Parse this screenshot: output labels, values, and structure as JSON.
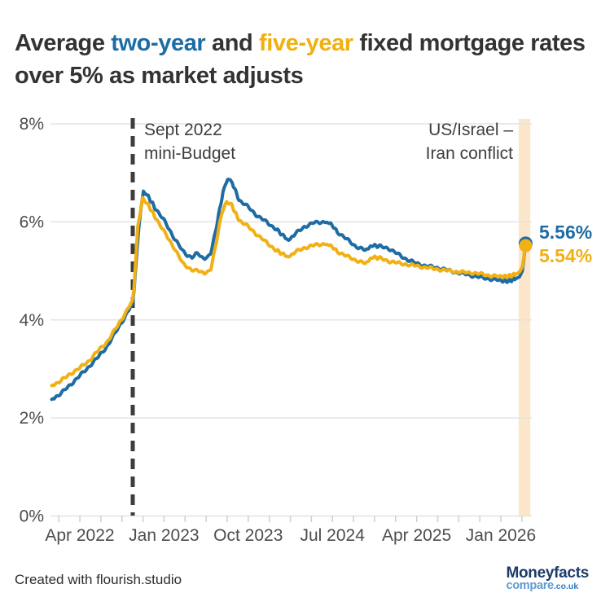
{
  "theme": {
    "ink": "#333333",
    "blue": "#1E6CA4",
    "yellow": "#F1AF10",
    "band": "#FCE6C9",
    "grid": "#E3E3E3",
    "tick": "#CFCFCF",
    "dash": "#3D3D3D",
    "axis_text": "#4D4D4D"
  },
  "title": {
    "segments": [
      {
        "text": "Average ",
        "color": "ink"
      },
      {
        "text": "two-year",
        "color": "blue"
      },
      {
        "text": " and ",
        "color": "ink"
      },
      {
        "text": "five-year",
        "color": "yellow"
      },
      {
        "text": " fixed mortgage rates over 5% as market adjusts",
        "color": "ink"
      }
    ]
  },
  "chart_data": {
    "type": "line",
    "title": "Average two-year and five-year fixed mortgage rates over 5% as market adjusts",
    "y_axis": {
      "unit": "%",
      "range": [
        0,
        8
      ],
      "tick_values": [
        0,
        2,
        4,
        6,
        8
      ],
      "tick_labels": [
        "0%",
        "2%",
        "4%",
        "6%",
        "8%"
      ],
      "grid": "horizontal"
    },
    "x_axis": {
      "note": "month index 0 = Jan 2022",
      "tick_labels": [
        {
          "label": "Apr 2022",
          "month": 3
        },
        {
          "label": "Jan 2023",
          "month": 12
        },
        {
          "label": "Oct 2023",
          "month": 21
        },
        {
          "label": "Jul 2024",
          "month": 30
        },
        {
          "label": "Apr 2025",
          "month": 39
        },
        {
          "label": "Jan 2026",
          "month": 48
        }
      ]
    },
    "series": [
      {
        "name": "two-year",
        "color": "#1E6CA4",
        "end_label": "5.56%",
        "end_value": 5.56,
        "points": [
          [
            0,
            2.38
          ],
          [
            1,
            2.5
          ],
          [
            2,
            2.68
          ],
          [
            3,
            2.86
          ],
          [
            4,
            3.05
          ],
          [
            5,
            3.25
          ],
          [
            6,
            3.48
          ],
          [
            7,
            3.8
          ],
          [
            8,
            4.12
          ],
          [
            8.6,
            4.32
          ],
          [
            8.8,
            4.6
          ],
          [
            9.3,
            5.9
          ],
          [
            9.8,
            6.62
          ],
          [
            10.2,
            6.55
          ],
          [
            11,
            6.3
          ],
          [
            12,
            6.03
          ],
          [
            13,
            5.7
          ],
          [
            14,
            5.4
          ],
          [
            14.5,
            5.32
          ],
          [
            15,
            5.28
          ],
          [
            15.4,
            5.38
          ],
          [
            16,
            5.28
          ],
          [
            16.6,
            5.25
          ],
          [
            17,
            5.35
          ],
          [
            17.6,
            5.9
          ],
          [
            18.3,
            6.6
          ],
          [
            18.8,
            6.87
          ],
          [
            19.3,
            6.8
          ],
          [
            20,
            6.45
          ],
          [
            21,
            6.3
          ],
          [
            22,
            6.12
          ],
          [
            23,
            5.99
          ],
          [
            24,
            5.85
          ],
          [
            25.3,
            5.62
          ],
          [
            26,
            5.75
          ],
          [
            27,
            5.9
          ],
          [
            28,
            5.98
          ],
          [
            29,
            6.0
          ],
          [
            29.8,
            5.97
          ],
          [
            30.5,
            5.8
          ],
          [
            31.5,
            5.65
          ],
          [
            32.5,
            5.5
          ],
          [
            33.5,
            5.42
          ],
          [
            34.3,
            5.52
          ],
          [
            35,
            5.5
          ],
          [
            36,
            5.46
          ],
          [
            37,
            5.34
          ],
          [
            38,
            5.23
          ],
          [
            39,
            5.15
          ],
          [
            40,
            5.1
          ],
          [
            41,
            5.07
          ],
          [
            42,
            5.03
          ],
          [
            43,
            4.98
          ],
          [
            44,
            4.94
          ],
          [
            45,
            4.9
          ],
          [
            46,
            4.86
          ],
          [
            47,
            4.83
          ],
          [
            48,
            4.8
          ],
          [
            48.8,
            4.79
          ],
          [
            49.6,
            4.84
          ],
          [
            50.0,
            4.88
          ],
          [
            50.3,
            5.0
          ],
          [
            50.65,
            5.56
          ]
        ]
      },
      {
        "name": "five-year",
        "color": "#F1B014",
        "end_label": "5.54%",
        "end_value": 5.54,
        "points": [
          [
            0,
            2.66
          ],
          [
            1,
            2.76
          ],
          [
            2,
            2.9
          ],
          [
            3,
            3.02
          ],
          [
            4,
            3.17
          ],
          [
            5,
            3.38
          ],
          [
            6,
            3.57
          ],
          [
            7,
            3.87
          ],
          [
            8,
            4.18
          ],
          [
            8.6,
            4.38
          ],
          [
            8.8,
            4.65
          ],
          [
            9.2,
            5.9
          ],
          [
            9.7,
            6.49
          ],
          [
            10.2,
            6.38
          ],
          [
            11,
            6.12
          ],
          [
            12,
            5.8
          ],
          [
            13,
            5.5
          ],
          [
            14,
            5.15
          ],
          [
            15,
            5.02
          ],
          [
            16,
            4.98
          ],
          [
            16.6,
            4.95
          ],
          [
            17,
            5.02
          ],
          [
            17.6,
            5.6
          ],
          [
            18.2,
            6.2
          ],
          [
            18.7,
            6.42
          ],
          [
            19.2,
            6.35
          ],
          [
            20,
            6.04
          ],
          [
            21,
            5.9
          ],
          [
            22,
            5.73
          ],
          [
            23,
            5.57
          ],
          [
            24,
            5.42
          ],
          [
            25.3,
            5.28
          ],
          [
            26,
            5.38
          ],
          [
            27,
            5.47
          ],
          [
            28,
            5.52
          ],
          [
            29,
            5.55
          ],
          [
            29.8,
            5.52
          ],
          [
            30.5,
            5.4
          ],
          [
            31.5,
            5.3
          ],
          [
            32.5,
            5.22
          ],
          [
            33.5,
            5.15
          ],
          [
            34.3,
            5.28
          ],
          [
            35,
            5.26
          ],
          [
            36,
            5.2
          ],
          [
            37,
            5.16
          ],
          [
            38,
            5.13
          ],
          [
            39,
            5.1
          ],
          [
            40,
            5.07
          ],
          [
            41,
            5.04
          ],
          [
            42,
            5.01
          ],
          [
            43,
            4.99
          ],
          [
            44,
            4.97
          ],
          [
            45,
            4.96
          ],
          [
            46,
            4.93
          ],
          [
            47,
            4.9
          ],
          [
            48,
            4.88
          ],
          [
            48.8,
            4.89
          ],
          [
            49.6,
            4.93
          ],
          [
            50.0,
            4.98
          ],
          [
            50.3,
            5.08
          ],
          [
            50.65,
            5.54
          ]
        ]
      }
    ],
    "annotations": [
      {
        "type": "line",
        "style": "dashed-vertical",
        "month": 8.66,
        "text": "Sept 2022\nmini-Budget"
      },
      {
        "type": "band",
        "month_from": 49.9,
        "month_to": 51.15,
        "text": "US/Israel –\nIran conflict"
      }
    ],
    "legend": "colored words in title"
  },
  "annotations": {
    "sept_budget": "Sept 2022\nmini-Budget",
    "us_israel": "US/Israel –\nIran conflict"
  },
  "footer": {
    "credit": "Created with flourish.studio",
    "logo_line1": "Moneyfacts",
    "logo_compare": "compare",
    "logo_couk": ".co.uk"
  }
}
